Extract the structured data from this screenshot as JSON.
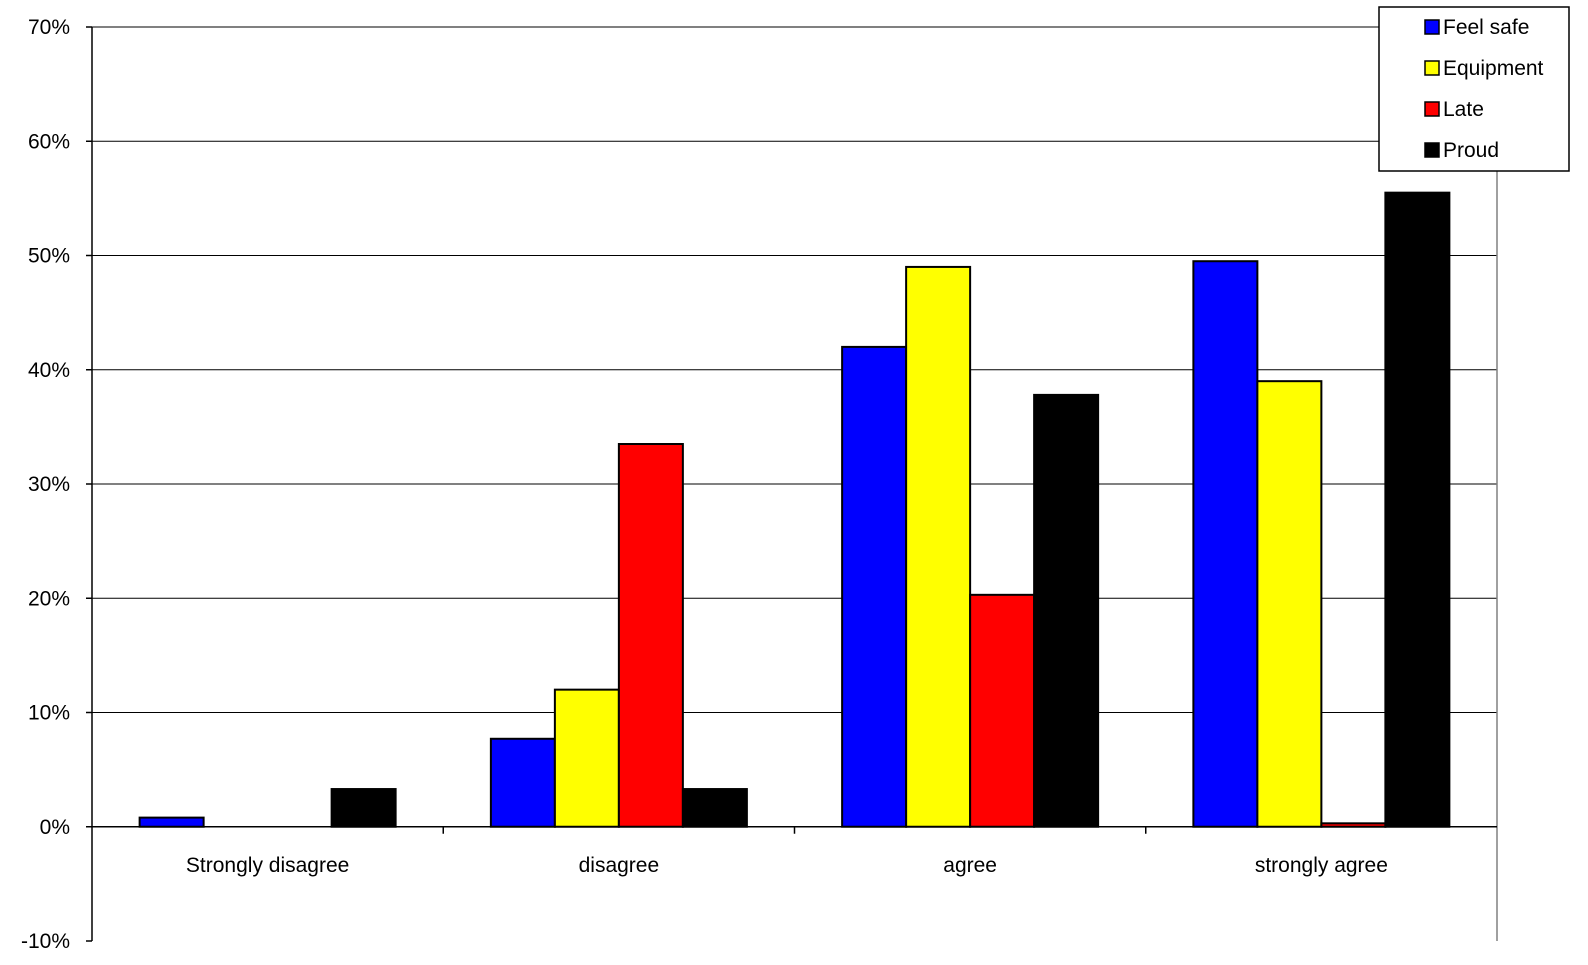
{
  "chart_data": {
    "type": "bar",
    "categories": [
      "Strongly disagree",
      "disagree",
      "agree",
      "strongly agree"
    ],
    "series": [
      {
        "name": "Feel safe",
        "color": "#0000ff",
        "values": [
          0.8,
          7.7,
          42.0,
          49.5
        ]
      },
      {
        "name": "Equipment",
        "color": "#ffff00",
        "values": [
          0.0,
          12.0,
          49.0,
          39.0
        ]
      },
      {
        "name": "Late",
        "color": "#ff0000",
        "values": [
          0.0,
          33.5,
          20.3,
          0.3
        ]
      },
      {
        "name": "Proud",
        "color": "#000000",
        "values": [
          3.3,
          3.3,
          37.8,
          55.5
        ]
      }
    ],
    "ylim": [
      -10,
      70
    ],
    "yticks": [
      -10,
      0,
      10,
      20,
      30,
      40,
      50,
      60,
      70
    ],
    "ytick_labels": [
      "-10%",
      "0%",
      "10%",
      "20%",
      "30%",
      "40%",
      "50%",
      "60%",
      "70%"
    ],
    "grid": true,
    "legend_position": "top-right",
    "title": "",
    "xlabel": "",
    "ylabel": ""
  }
}
